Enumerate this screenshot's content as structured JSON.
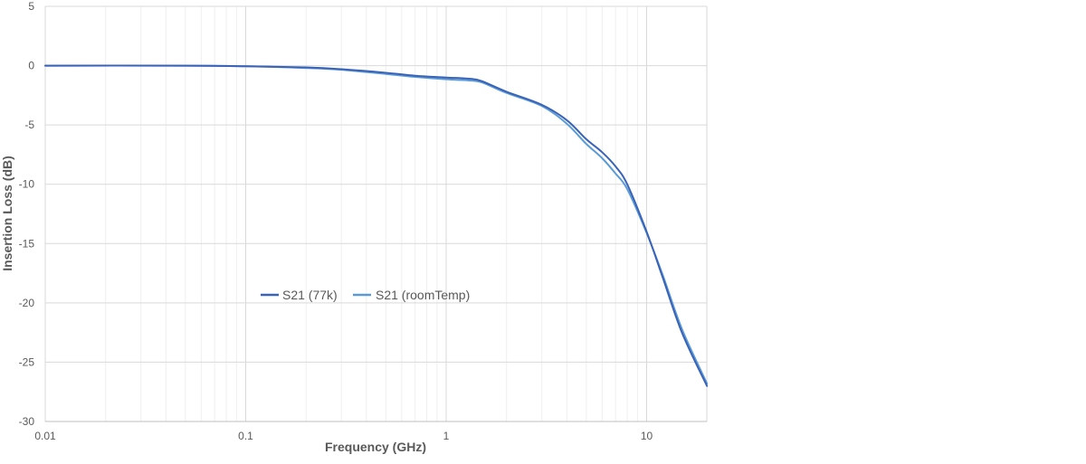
{
  "chart_data": {
    "type": "line",
    "title": "",
    "xlabel": "Frequency (GHz)",
    "ylabel": "Insertion Loss (dB)",
    "x_scale": "log",
    "xlim": [
      0.01,
      20
    ],
    "ylim": [
      -30,
      5
    ],
    "x_ticks": [
      "0.01",
      "0.1",
      "1",
      "10"
    ],
    "y_ticks": [
      "5",
      "0",
      "-5",
      "-10",
      "-15",
      "-20",
      "-25",
      "-30"
    ],
    "grid": true,
    "legend_position": "center-left",
    "series": [
      {
        "name": "S21 (77k)",
        "color": "#3a63b8",
        "x": [
          0.01,
          0.05,
          0.1,
          0.2,
          0.3,
          0.5,
          0.7,
          1.0,
          1.3,
          1.5,
          2.0,
          3.0,
          4.0,
          5.0,
          6.0,
          7.0,
          8.0,
          10.0,
          12.0,
          15.0,
          20.0
        ],
        "y": [
          0.0,
          0.0,
          -0.05,
          -0.15,
          -0.3,
          -0.6,
          -0.85,
          -1.0,
          -1.1,
          -1.3,
          -2.2,
          -3.3,
          -4.6,
          -6.2,
          -7.3,
          -8.5,
          -10.0,
          -14.0,
          -17.8,
          -22.5,
          -27.0
        ]
      },
      {
        "name": "S21 (roomTemp)",
        "color": "#5b9bd5",
        "x": [
          0.01,
          0.05,
          0.1,
          0.2,
          0.3,
          0.5,
          0.7,
          1.0,
          1.3,
          1.5,
          2.0,
          3.0,
          4.0,
          5.0,
          6.0,
          7.0,
          8.0,
          10.0,
          12.0,
          15.0,
          20.0
        ],
        "y": [
          0.0,
          0.0,
          -0.05,
          -0.2,
          -0.35,
          -0.7,
          -0.95,
          -1.15,
          -1.25,
          -1.4,
          -2.3,
          -3.4,
          -4.9,
          -6.6,
          -7.8,
          -9.1,
          -10.4,
          -14.1,
          -17.6,
          -22.2,
          -26.8
        ]
      }
    ]
  }
}
